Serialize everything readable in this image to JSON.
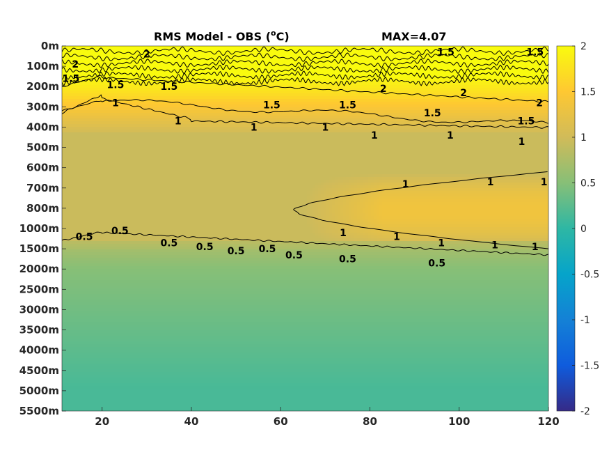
{
  "chart_data": {
    "type": "heatmap",
    "title": "RMS Model - OBS (",
    "title_unit_sup": "o",
    "title_unit_end": "C)",
    "max_label": "MAX=4.07",
    "xlim": [
      11,
      120
    ],
    "x_ticks": [
      20,
      40,
      60,
      80,
      100,
      120
    ],
    "x_tick_labels": [
      "20",
      "40",
      "60",
      "80",
      "100",
      "120"
    ],
    "y_tick_labels": [
      "0m",
      "100m",
      "200m",
      "300m",
      "400m",
      "500m",
      "600m",
      "700m",
      "800m",
      "1000m",
      "1500m",
      "2000m",
      "2500m",
      "3000m",
      "3500m",
      "4000m",
      "4500m",
      "5000m",
      "5500m"
    ],
    "colorbar": {
      "colormap": "parula",
      "range": [
        -2,
        2
      ],
      "ticks": [
        2,
        1.5,
        1,
        0.5,
        0,
        -0.5,
        -1,
        -1.5,
        -2
      ],
      "tick_labels": [
        "2",
        "1.5",
        "1",
        "0.5",
        "0",
        "-0.5",
        "-1",
        "-1.5",
        "-2"
      ]
    },
    "contour_levels": [
      0.5,
      1,
      1.5,
      2
    ],
    "contour_labels": [
      {
        "text": "1.5",
        "x": 13,
        "y": 1.6
      },
      {
        "text": "2",
        "x": 14,
        "y": 0.9
      },
      {
        "text": "1.5",
        "x": 23,
        "y": 1.9
      },
      {
        "text": "1.5",
        "x": 35,
        "y": 2.0
      },
      {
        "text": "2",
        "x": 30,
        "y": 0.4
      },
      {
        "text": "1",
        "x": 23,
        "y": 2.8
      },
      {
        "text": "1",
        "x": 37,
        "y": 3.7
      },
      {
        "text": "1.5",
        "x": 58,
        "y": 2.9
      },
      {
        "text": "1.5",
        "x": 75,
        "y": 2.9
      },
      {
        "text": "2",
        "x": 83,
        "y": 2.1
      },
      {
        "text": "1.5",
        "x": 94,
        "y": 3.3
      },
      {
        "text": "2",
        "x": 101,
        "y": 2.3
      },
      {
        "text": "1.5",
        "x": 115,
        "y": 3.7
      },
      {
        "text": "2",
        "x": 118,
        "y": 2.8
      },
      {
        "text": "1.5",
        "x": 97,
        "y": 0.3
      },
      {
        "text": "1.5",
        "x": 117,
        "y": 0.3
      },
      {
        "text": "1",
        "x": 54,
        "y": 4.0
      },
      {
        "text": "1",
        "x": 70,
        "y": 4.0
      },
      {
        "text": "1",
        "x": 81,
        "y": 4.4
      },
      {
        "text": "1",
        "x": 98,
        "y": 4.4
      },
      {
        "text": "1",
        "x": 114,
        "y": 4.7
      },
      {
        "text": "1",
        "x": 88,
        "y": 6.8
      },
      {
        "text": "1",
        "x": 107,
        "y": 6.7
      },
      {
        "text": "1",
        "x": 119,
        "y": 6.7
      },
      {
        "text": "1",
        "x": 74,
        "y": 9.2
      },
      {
        "text": "1",
        "x": 86,
        "y": 9.4
      },
      {
        "text": "1",
        "x": 96,
        "y": 9.7
      },
      {
        "text": "1",
        "x": 108,
        "y": 9.8
      },
      {
        "text": "1",
        "x": 117,
        "y": 9.9
      },
      {
        "text": "0.5",
        "x": 16,
        "y": 9.4
      },
      {
        "text": "0.5",
        "x": 24,
        "y": 9.1
      },
      {
        "text": "0.5",
        "x": 35,
        "y": 9.7
      },
      {
        "text": "0.5",
        "x": 43,
        "y": 9.9
      },
      {
        "text": "0.5",
        "x": 50,
        "y": 10.1
      },
      {
        "text": "0.5",
        "x": 57,
        "y": 10.0
      },
      {
        "text": "0.5",
        "x": 63,
        "y": 10.3
      },
      {
        "text": "0.5",
        "x": 75,
        "y": 10.5
      },
      {
        "text": "0.5",
        "x": 95,
        "y": 10.7
      }
    ]
  }
}
